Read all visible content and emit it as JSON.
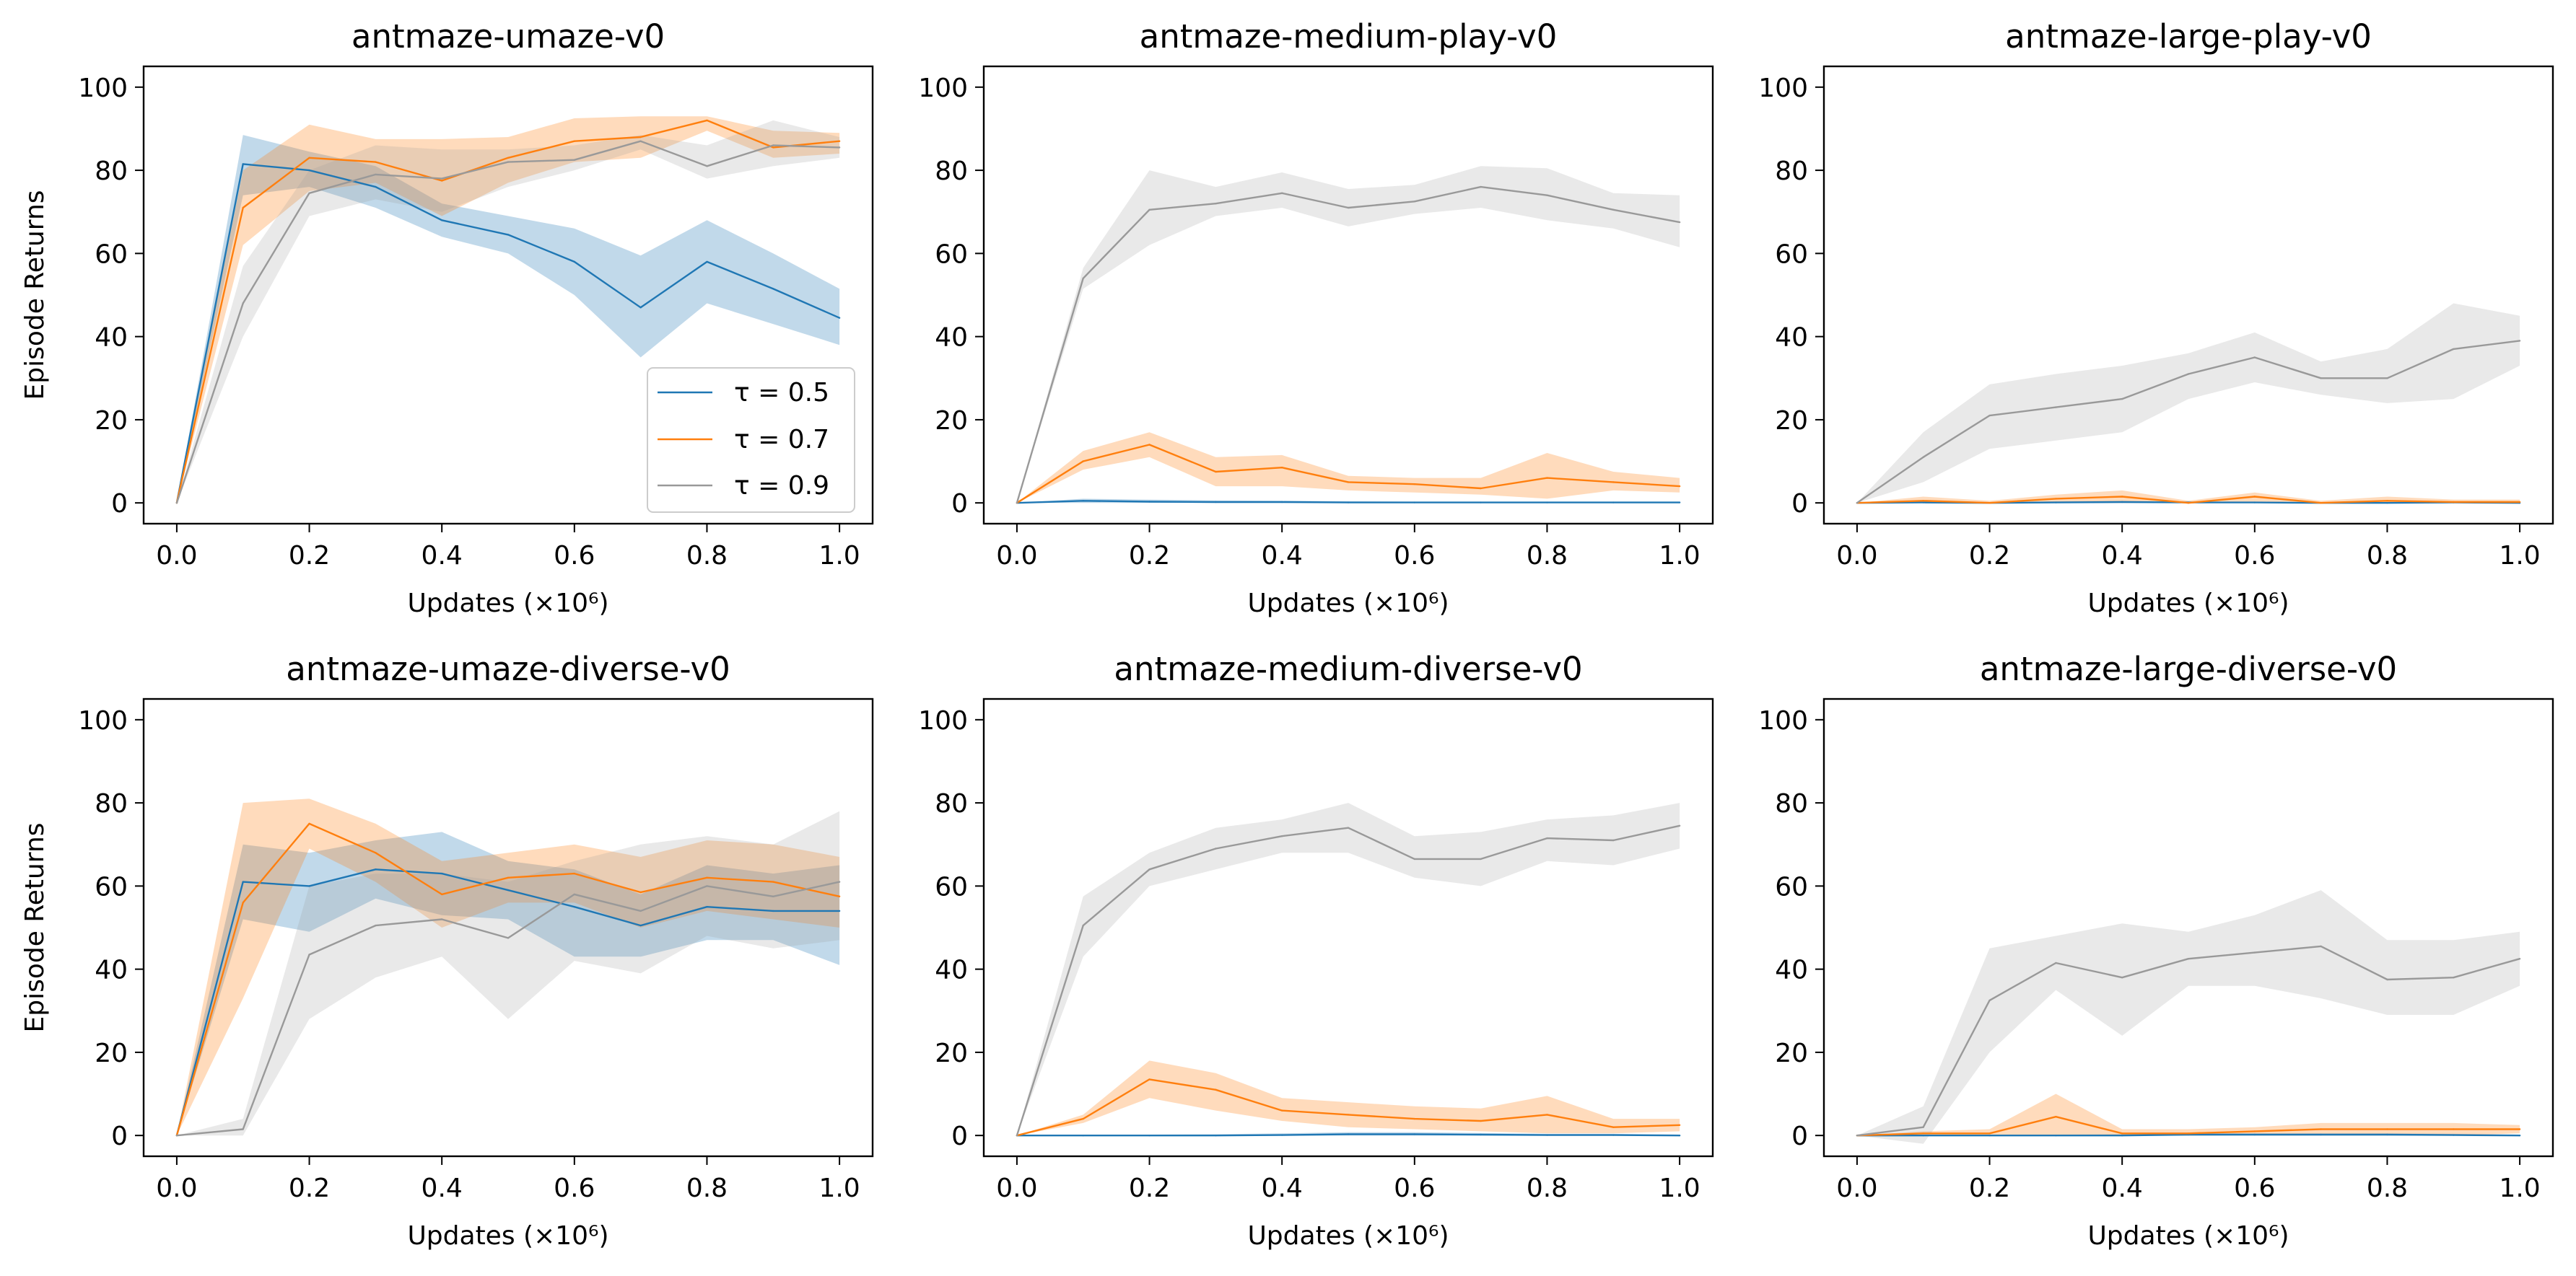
{
  "colors": {
    "tau_0_5": "#1f77b4",
    "tau_0_7": "#ff7f0e",
    "tau_0_9": "#999999",
    "axes": "#000000",
    "background": "#ffffff"
  },
  "legend": {
    "location": "lower-right of top-left panel",
    "entries": [
      {
        "series": "tau_0_5",
        "label": "τ = 0.5"
      },
      {
        "series": "tau_0_7",
        "label": "τ = 0.7"
      },
      {
        "series": "tau_0_9",
        "label": "τ = 0.9"
      }
    ]
  },
  "chart_data": [
    {
      "type": "line",
      "title": "antmaze-umaze-v0",
      "xlabel": "Updates (×10⁶)",
      "ylabel": "Episode Returns",
      "xticks": [
        "0.0",
        "0.2",
        "0.4",
        "0.6",
        "0.8",
        "1.0"
      ],
      "yticks": [
        "0",
        "20",
        "40",
        "60",
        "80",
        "100"
      ],
      "xlim": [
        -0.05,
        1.05
      ],
      "ylim": [
        -5,
        105
      ],
      "grid": false,
      "x": [
        0.0,
        0.1,
        0.2,
        0.3,
        0.4,
        0.5,
        0.6,
        0.7,
        0.8,
        0.9,
        1.0
      ],
      "series": [
        {
          "key": "tau_0_5",
          "name": "τ = 0.5",
          "mean": [
            0,
            81.5,
            80,
            76,
            68,
            64.5,
            58,
            47,
            58,
            51.5,
            44.5
          ],
          "lower": [
            0,
            74,
            76,
            71,
            64,
            60,
            50,
            35,
            48,
            43,
            38
          ],
          "upper": [
            0,
            88.5,
            84.5,
            81,
            72,
            69,
            66,
            59.5,
            68,
            60,
            51.5
          ]
        },
        {
          "key": "tau_0_7",
          "name": "τ = 0.7",
          "mean": [
            0,
            71,
            83,
            82,
            77.5,
            83,
            87,
            88,
            92,
            85.5,
            87
          ],
          "lower": [
            0,
            62,
            75,
            77,
            69,
            77,
            82,
            83,
            89.5,
            83,
            84
          ],
          "upper": [
            0,
            80,
            91,
            87.5,
            87.5,
            88,
            92.5,
            93,
            93,
            89.5,
            89
          ]
        },
        {
          "key": "tau_0_9",
          "name": "τ = 0.9",
          "mean": [
            0,
            48,
            74.5,
            79,
            78,
            82,
            82.5,
            87,
            81,
            86,
            85.5
          ],
          "lower": [
            0,
            40,
            69,
            73,
            70,
            76,
            80,
            85,
            78,
            81,
            83
          ],
          "upper": [
            0,
            57,
            80,
            86,
            85,
            85,
            86,
            88.5,
            86,
            92,
            88
          ]
        }
      ]
    },
    {
      "type": "line",
      "title": "antmaze-medium-play-v0",
      "xlabel": "Updates (×10⁶)",
      "ylabel": "",
      "xticks": [
        "0.0",
        "0.2",
        "0.4",
        "0.6",
        "0.8",
        "1.0"
      ],
      "yticks": [
        "0",
        "20",
        "40",
        "60",
        "80",
        "100"
      ],
      "xlim": [
        -0.05,
        1.05
      ],
      "ylim": [
        -5,
        105
      ],
      "grid": false,
      "x": [
        0.0,
        0.1,
        0.2,
        0.3,
        0.4,
        0.5,
        0.6,
        0.7,
        0.8,
        0.9,
        1.0
      ],
      "series": [
        {
          "key": "tau_0_5",
          "name": "τ = 0.5",
          "mean": [
            0,
            0.5,
            0.3,
            0.2,
            0.2,
            0.1,
            0.1,
            0.1,
            0.1,
            0.1,
            0.1
          ],
          "lower": [
            0,
            0,
            0,
            0,
            0,
            0,
            0,
            0,
            0,
            0,
            0
          ],
          "upper": [
            0,
            1,
            0.8,
            0.6,
            0.5,
            0.4,
            0.3,
            0.3,
            0.3,
            0.3,
            0.3
          ]
        },
        {
          "key": "tau_0_7",
          "name": "τ = 0.7",
          "mean": [
            0,
            10,
            14,
            7.5,
            8.5,
            5,
            4.5,
            3.5,
            6,
            5,
            4
          ],
          "lower": [
            0,
            8,
            11,
            4,
            4,
            3,
            2.5,
            2,
            1,
            3,
            2.5
          ],
          "upper": [
            0,
            12.5,
            17,
            11,
            11.5,
            6.5,
            6,
            6,
            12,
            7.5,
            6
          ]
        },
        {
          "key": "tau_0_9",
          "name": "τ = 0.9",
          "mean": [
            0,
            54,
            70.5,
            72,
            74.5,
            71,
            72.5,
            76,
            74,
            70.5,
            67.5
          ],
          "lower": [
            0,
            51.5,
            62,
            69,
            71,
            66.5,
            69.5,
            71,
            68,
            66,
            61.5
          ],
          "upper": [
            0,
            56.5,
            80,
            76,
            79.5,
            75.5,
            76.5,
            81,
            80.5,
            74.5,
            74
          ]
        }
      ]
    },
    {
      "type": "line",
      "title": "antmaze-large-play-v0",
      "xlabel": "Updates (×10⁶)",
      "ylabel": "",
      "xticks": [
        "0.0",
        "0.2",
        "0.4",
        "0.6",
        "0.8",
        "1.0"
      ],
      "yticks": [
        "0",
        "20",
        "40",
        "60",
        "80",
        "100"
      ],
      "xlim": [
        -0.05,
        1.05
      ],
      "ylim": [
        -5,
        105
      ],
      "grid": false,
      "x": [
        0.0,
        0.1,
        0.2,
        0.3,
        0.4,
        0.5,
        0.6,
        0.7,
        0.8,
        0.9,
        1.0
      ],
      "series": [
        {
          "key": "tau_0_5",
          "name": "τ = 0.5",
          "mean": [
            0,
            0.1,
            0,
            0.1,
            0.2,
            0.1,
            0.1,
            0,
            0,
            0.1,
            0
          ],
          "lower": [
            0,
            0,
            0,
            0,
            0,
            0,
            0,
            0,
            0,
            0,
            0
          ],
          "upper": [
            0,
            0.5,
            0.2,
            0.4,
            0.5,
            0.3,
            0.3,
            0.2,
            0.2,
            0.3,
            0.2
          ]
        },
        {
          "key": "tau_0_7",
          "name": "τ = 0.7",
          "mean": [
            0,
            0.5,
            0,
            1,
            1.5,
            0,
            1.5,
            0,
            0.5,
            0.2,
            0.2
          ],
          "lower": [
            0,
            0,
            0,
            0,
            0,
            0,
            0,
            0,
            0,
            0,
            0
          ],
          "upper": [
            0,
            1.5,
            0.5,
            2,
            3,
            0.5,
            2.5,
            0.5,
            1.5,
            0.8,
            0.8
          ]
        },
        {
          "key": "tau_0_9",
          "name": "τ = 0.9",
          "mean": [
            0,
            11,
            21,
            23,
            25,
            31,
            35,
            30,
            30,
            37,
            39
          ],
          "lower": [
            0,
            5,
            13,
            15,
            17,
            25,
            29,
            26,
            24,
            25,
            33
          ],
          "upper": [
            0,
            17,
            28.5,
            31,
            33,
            36,
            41,
            34,
            37,
            48,
            45
          ]
        }
      ]
    },
    {
      "type": "line",
      "title": "antmaze-umaze-diverse-v0",
      "xlabel": "Updates (×10⁶)",
      "ylabel": "Episode Returns",
      "xticks": [
        "0.0",
        "0.2",
        "0.4",
        "0.6",
        "0.8",
        "1.0"
      ],
      "yticks": [
        "0",
        "20",
        "40",
        "60",
        "80",
        "100"
      ],
      "xlim": [
        -0.05,
        1.05
      ],
      "ylim": [
        -5,
        105
      ],
      "grid": false,
      "x": [
        0.0,
        0.1,
        0.2,
        0.3,
        0.4,
        0.5,
        0.6,
        0.7,
        0.8,
        0.9,
        1.0
      ],
      "series": [
        {
          "key": "tau_0_5",
          "name": "τ = 0.5",
          "mean": [
            0,
            61,
            60,
            64,
            63,
            59,
            55,
            50.5,
            55,
            54,
            54
          ],
          "lower": [
            0,
            52,
            49,
            57,
            53,
            52,
            43,
            43,
            47,
            47,
            41
          ],
          "upper": [
            0,
            70,
            68,
            71,
            73,
            66,
            64,
            58,
            65,
            63,
            65
          ]
        },
        {
          "key": "tau_0_7",
          "name": "τ = 0.7",
          "mean": [
            0,
            56,
            75,
            68,
            58,
            62,
            63,
            58.5,
            62,
            61,
            57.5
          ],
          "lower": [
            0,
            33,
            69,
            61,
            50,
            56,
            56,
            50,
            54,
            52,
            50
          ],
          "upper": [
            0,
            80,
            81,
            75,
            66,
            68,
            70,
            67,
            71,
            70,
            67
          ]
        },
        {
          "key": "tau_0_9",
          "name": "τ = 0.9",
          "mean": [
            0,
            1.5,
            43.5,
            50.5,
            52,
            47.5,
            58,
            54,
            60,
            57.5,
            61
          ],
          "lower": [
            0,
            0,
            28,
            38,
            43,
            28,
            42,
            39,
            48,
            45,
            47
          ],
          "upper": [
            0,
            4,
            60,
            63,
            63,
            61,
            66,
            70,
            72,
            70,
            78
          ]
        }
      ]
    },
    {
      "type": "line",
      "title": "antmaze-medium-diverse-v0",
      "xlabel": "Updates (×10⁶)",
      "ylabel": "",
      "xticks": [
        "0.0",
        "0.2",
        "0.4",
        "0.6",
        "0.8",
        "1.0"
      ],
      "yticks": [
        "0",
        "20",
        "40",
        "60",
        "80",
        "100"
      ],
      "xlim": [
        -0.05,
        1.05
      ],
      "ylim": [
        -5,
        105
      ],
      "grid": false,
      "x": [
        0.0,
        0.1,
        0.2,
        0.3,
        0.4,
        0.5,
        0.6,
        0.7,
        0.8,
        0.9,
        1.0
      ],
      "series": [
        {
          "key": "tau_0_5",
          "name": "τ = 0.5",
          "mean": [
            0,
            0,
            0,
            0,
            0.1,
            0.3,
            0.3,
            0.2,
            0.1,
            0.1,
            0
          ],
          "lower": [
            0,
            0,
            0,
            0,
            0,
            0,
            0,
            0,
            0,
            0,
            0
          ],
          "upper": [
            0,
            0.2,
            0.2,
            0.3,
            0.5,
            0.8,
            0.8,
            0.6,
            0.4,
            0.4,
            0.2
          ]
        },
        {
          "key": "tau_0_7",
          "name": "τ = 0.7",
          "mean": [
            0,
            4,
            13.5,
            11,
            6,
            5,
            4,
            3.5,
            5,
            2,
            2.5
          ],
          "lower": [
            0,
            3,
            9,
            6,
            3.5,
            2,
            1.5,
            1,
            0.5,
            0.5,
            1
          ],
          "upper": [
            0,
            5,
            18,
            15,
            9,
            8,
            7,
            6.5,
            9.5,
            4,
            4
          ]
        },
        {
          "key": "tau_0_9",
          "name": "τ = 0.9",
          "mean": [
            0,
            50.5,
            64,
            69,
            72,
            74,
            66.5,
            66.5,
            71.5,
            71,
            74.5
          ],
          "lower": [
            0,
            43,
            60,
            64,
            68,
            68,
            62,
            60,
            66,
            65,
            69
          ],
          "upper": [
            0,
            57.5,
            68,
            74,
            76,
            80,
            72,
            73,
            76,
            77,
            80
          ]
        }
      ]
    },
    {
      "type": "line",
      "title": "antmaze-large-diverse-v0",
      "xlabel": "Updates (×10⁶)",
      "ylabel": "",
      "xticks": [
        "0.0",
        "0.2",
        "0.4",
        "0.6",
        "0.8",
        "1.0"
      ],
      "yticks": [
        "0",
        "20",
        "40",
        "60",
        "80",
        "100"
      ],
      "xlim": [
        -0.05,
        1.05
      ],
      "ylim": [
        -5,
        105
      ],
      "grid": false,
      "x": [
        0.0,
        0.1,
        0.2,
        0.3,
        0.4,
        0.5,
        0.6,
        0.7,
        0.8,
        0.9,
        1.0
      ],
      "series": [
        {
          "key": "tau_0_5",
          "name": "τ = 0.5",
          "mean": [
            0,
            0,
            0,
            0,
            0,
            0.2,
            0.2,
            0.2,
            0.2,
            0.1,
            0
          ],
          "lower": [
            0,
            0,
            0,
            0,
            0,
            0,
            0,
            0,
            0,
            0,
            0
          ],
          "upper": [
            0,
            0.2,
            0.2,
            0.2,
            0.3,
            0.5,
            0.5,
            0.5,
            0.5,
            0.4,
            0.2
          ]
        },
        {
          "key": "tau_0_7",
          "name": "τ = 0.7",
          "mean": [
            0,
            0.5,
            0.5,
            4.5,
            0.5,
            0.5,
            1,
            1.5,
            1.5,
            1.5,
            1.5
          ],
          "lower": [
            0,
            0,
            0,
            0,
            0,
            0,
            0,
            0,
            0,
            0,
            0.5
          ],
          "upper": [
            0,
            1,
            1.5,
            10,
            1.5,
            1.5,
            2,
            3,
            3,
            3,
            2.5
          ]
        },
        {
          "key": "tau_0_9",
          "name": "τ = 0.9",
          "mean": [
            0,
            2,
            32.5,
            41.5,
            38,
            42.5,
            44,
            45.5,
            37.5,
            38,
            42.5
          ],
          "lower": [
            0,
            -2,
            20,
            35,
            24,
            36,
            36,
            33,
            29,
            29,
            36
          ],
          "upper": [
            0,
            7,
            45,
            48,
            51,
            49,
            53,
            59,
            47,
            47,
            49
          ]
        }
      ]
    }
  ]
}
